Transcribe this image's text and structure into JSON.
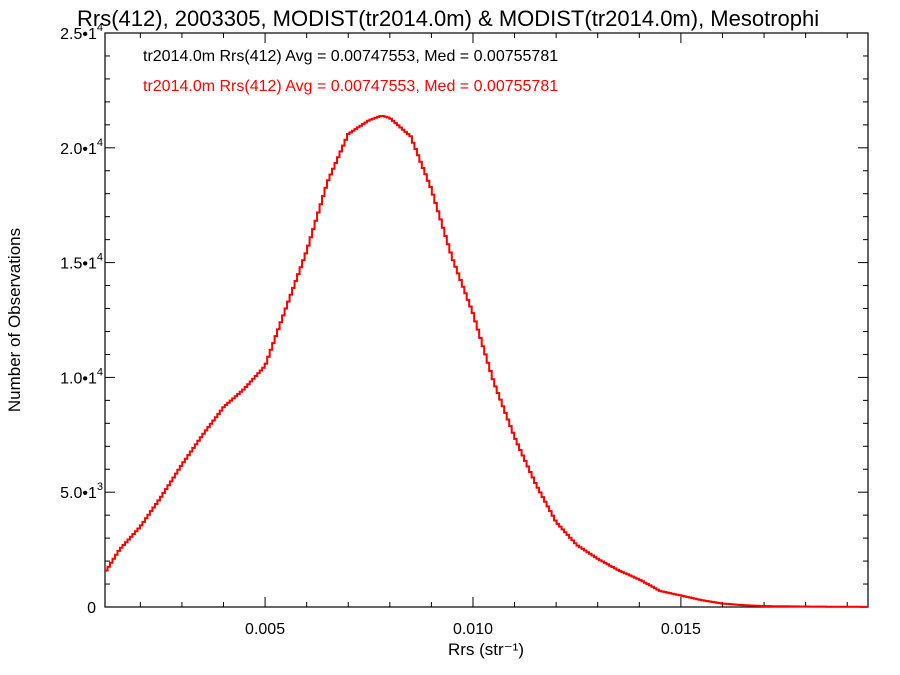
{
  "chart_data": {
    "type": "line",
    "title": "Rrs(412), 2003305, MODIST(tr2014.0m) & MODIST(tr2014.0m), Mesotrophi",
    "xlabel": "Rrs (str⁻¹)",
    "ylabel": "Number of Observations",
    "xlim": [
      0.00115,
      0.0195
    ],
    "ylim": [
      0,
      25000
    ],
    "xticks": [
      {
        "value": 0.005,
        "label": "0.005"
      },
      {
        "value": 0.01,
        "label": "0.010"
      },
      {
        "value": 0.015,
        "label": "0.015"
      }
    ],
    "yticks": [
      {
        "value": 0,
        "mant": "0",
        "exp": ""
      },
      {
        "value": 5000,
        "mant": "5.0•1",
        "exp": "3"
      },
      {
        "value": 10000,
        "mant": "1.0•1",
        "exp": "4"
      },
      {
        "value": 15000,
        "mant": "1.5•1",
        "exp": "4"
      },
      {
        "value": 20000,
        "mant": "2.0•1",
        "exp": "4"
      },
      {
        "value": 25000,
        "mant": "2.5•1",
        "exp": "4"
      }
    ],
    "grid": false,
    "legend_position": "top-left",
    "series": [
      {
        "name": "tr2014.0m Rrs(412) Avg = 0.00747553, Med = 0.00755781",
        "color": "#000000",
        "x": [
          0.00115,
          0.0015,
          0.002,
          0.0025,
          0.003,
          0.0035,
          0.004,
          0.0045,
          0.005,
          0.0055,
          0.006,
          0.0065,
          0.007,
          0.0075,
          0.0078,
          0.008,
          0.0085,
          0.009,
          0.0095,
          0.01,
          0.0105,
          0.011,
          0.0115,
          0.012,
          0.0125,
          0.013,
          0.0135,
          0.014,
          0.0145,
          0.015,
          0.0155,
          0.016,
          0.0165,
          0.017,
          0.018,
          0.0195
        ],
        "y": [
          1500,
          2500,
          3500,
          4800,
          6200,
          7500,
          8700,
          9500,
          10500,
          13000,
          15500,
          18500,
          20600,
          21200,
          21400,
          21300,
          20500,
          18200,
          15200,
          12800,
          9800,
          7400,
          5400,
          3700,
          2700,
          2100,
          1600,
          1200,
          700,
          500,
          300,
          150,
          80,
          40,
          20,
          5
        ]
      },
      {
        "name": "tr2014.0m Rrs(412) Avg = 0.00747553, Med = 0.00755781",
        "color": "#ff0000",
        "x": [
          0.00115,
          0.0015,
          0.002,
          0.0025,
          0.003,
          0.0035,
          0.004,
          0.0045,
          0.005,
          0.0055,
          0.006,
          0.0065,
          0.007,
          0.0075,
          0.0078,
          0.008,
          0.0085,
          0.009,
          0.0095,
          0.01,
          0.0105,
          0.011,
          0.0115,
          0.012,
          0.0125,
          0.013,
          0.0135,
          0.014,
          0.0145,
          0.015,
          0.0155,
          0.016,
          0.0165,
          0.017,
          0.018,
          0.0195
        ],
        "y": [
          1500,
          2500,
          3500,
          4800,
          6200,
          7500,
          8700,
          9500,
          10500,
          13000,
          15500,
          18500,
          20600,
          21200,
          21400,
          21300,
          20500,
          18200,
          15200,
          12800,
          9800,
          7400,
          5400,
          3700,
          2700,
          2100,
          1600,
          1200,
          700,
          500,
          300,
          150,
          80,
          40,
          20,
          5
        ]
      }
    ]
  }
}
